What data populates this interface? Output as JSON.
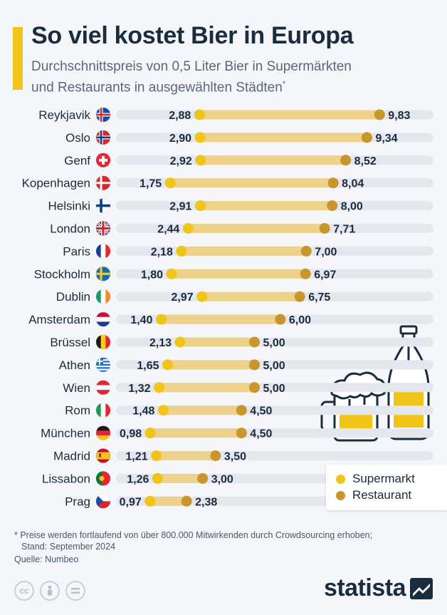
{
  "header": {
    "title": "So viel kostet Bier in Europa",
    "subtitle_line1": "Durchschnittspreis von 0,5 Liter Bier in Supermärkten",
    "subtitle_line2": "und Restaurants in ausgewählten Städten",
    "subtitle_mark": "*"
  },
  "colors": {
    "supermarket": "#f0c419",
    "restaurant": "#c9962e",
    "track": "#e4e8ee",
    "bar": "#ecd28a"
  },
  "chart_data": {
    "type": "dumbbell",
    "title": "So viel kostet Bier in Europa",
    "unit": "Euro",
    "categories": [
      "Reykjavik",
      "Oslo",
      "Genf",
      "Kopenhagen",
      "Helsinki",
      "London",
      "Paris",
      "Stockholm",
      "Dublin",
      "Amsterdam",
      "Brüssel",
      "Athen",
      "Wien",
      "Rom",
      "München",
      "Madrid",
      "Lissabon",
      "Prag"
    ],
    "flags": [
      "iceland",
      "norway",
      "switzerland",
      "denmark",
      "finland",
      "uk",
      "france",
      "sweden",
      "ireland",
      "netherlands",
      "belgium",
      "greece",
      "austria",
      "italy",
      "germany",
      "spain",
      "portugal",
      "czechia"
    ],
    "series": [
      {
        "name": "Supermarkt",
        "values": [
          2.88,
          2.9,
          2.92,
          1.75,
          2.91,
          2.44,
          2.18,
          1.8,
          2.97,
          1.4,
          2.13,
          1.65,
          1.32,
          1.48,
          0.98,
          1.21,
          1.26,
          0.97
        ],
        "labels": [
          "2,88",
          "2,90",
          "2,92",
          "1,75",
          "2,91",
          "2,44",
          "2,18",
          "1,80",
          "2,97",
          "1,40",
          "2,13",
          "1,65",
          "1,32",
          "1,48",
          "0,98",
          "1,21",
          "1,26",
          "0,97"
        ]
      },
      {
        "name": "Restaurant",
        "values": [
          9.83,
          9.34,
          8.52,
          8.04,
          8.0,
          7.71,
          7.0,
          6.97,
          6.75,
          6.0,
          5.0,
          5.0,
          5.0,
          4.5,
          4.5,
          3.5,
          3.0,
          2.38
        ],
        "labels": [
          "9,83",
          "9,34",
          "8,52",
          "8,04",
          "8,00",
          "7,71",
          "7,00",
          "6,97",
          "6,75",
          "6,00",
          "5,00",
          "5,00",
          "5,00",
          "4,50",
          "4,50",
          "3,50",
          "3,00",
          "2,38"
        ]
      }
    ],
    "legend": [
      "Supermarkt",
      "Restaurant"
    ]
  },
  "footer": {
    "footnote": "* Preise werden fortlaufend von über 800.000 Mitwirkenden durch Crowdsourcing erhoben;",
    "footnote2": "Stand: September 2024",
    "source": "Quelle: Numbeo",
    "logo": "statista"
  }
}
